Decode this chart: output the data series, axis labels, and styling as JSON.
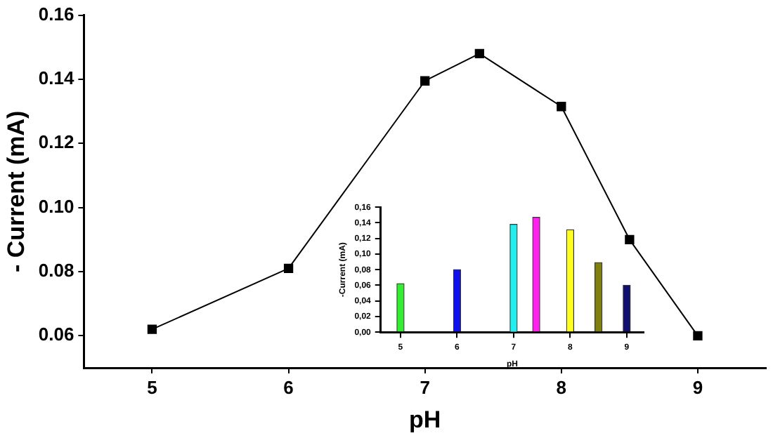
{
  "chart_data": [
    {
      "type": "line",
      "xlabel": "pH",
      "ylabel": "- Current (mA)",
      "x": [
        5,
        6,
        7,
        7.4,
        8,
        8.5,
        9
      ],
      "series": [
        {
          "color": "#000000",
          "values": [
            0.062,
            0.081,
            0.1395,
            0.148,
            0.1315,
            0.09,
            0.06
          ]
        }
      ],
      "xlim": [
        4.5,
        9.5
      ],
      "xticks": [
        5,
        6,
        7,
        8,
        9
      ],
      "ylim": [
        0.05,
        0.16
      ],
      "yticks": [
        0.06,
        0.08,
        {
          "value": 0.1,
          "label": "0.10"
        },
        0.12,
        0.14,
        0.16
      ],
      "marker": "square",
      "line_style": "solid"
    },
    {
      "type": "bar",
      "xlabel": "pH",
      "ylabel": "-Current (mA)",
      "x": [
        5,
        6,
        7,
        7.4,
        8,
        8.5,
        9
      ],
      "series": [
        {
          "colors": [
            "#33ee33",
            "#1010ee",
            "#22eeee",
            "#ff22ee",
            "#ffff22",
            "#808010",
            "#10106e"
          ],
          "values": [
            0.062,
            0.08,
            0.138,
            0.147,
            0.131,
            0.089,
            0.06
          ]
        }
      ],
      "xlim": [
        4.65,
        9.3
      ],
      "xticks": [
        5,
        6,
        7,
        8,
        9
      ],
      "ylim": [
        0,
        0.16
      ],
      "yticks": [
        {
          "value": 0,
          "label": "0,00"
        },
        {
          "value": 0.02,
          "label": "0,02"
        },
        {
          "value": 0.04,
          "label": "0,04"
        },
        {
          "value": 0.06,
          "label": "0,06"
        },
        {
          "value": 0.08,
          "label": "0,08"
        },
        {
          "value": 0.1,
          "label": "0,10"
        },
        {
          "value": 0.12,
          "label": "0,12"
        },
        {
          "value": 0.14,
          "label": "0,14"
        },
        {
          "value": 0.16,
          "label": "0,16"
        }
      ]
    }
  ]
}
